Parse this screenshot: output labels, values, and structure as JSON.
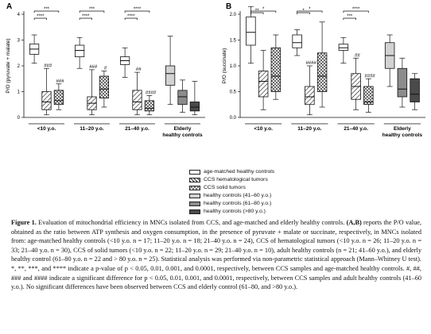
{
  "figure": {
    "panels": [
      "A",
      "B"
    ],
    "group_labels": [
      "<10 y.o.",
      "11–20 y.o.",
      "21–40 y.o.",
      "Elderly\nhealthy controls"
    ],
    "legend": [
      {
        "label": "age-matched healthy controls",
        "pattern": "white"
      },
      {
        "label": "CCS hematological tumors",
        "pattern": "hatch"
      },
      {
        "label": "CCS solid tumors",
        "pattern": "cross"
      },
      {
        "label": "healthy controls (41–60 y.o.)",
        "pattern": "light-gray"
      },
      {
        "label": "healthy controls (61–80 y.o.)",
        "pattern": "mid-gray"
      },
      {
        "label": "healthy controls (>80 y.o.)",
        "pattern": "dark-gray"
      }
    ],
    "colors": {
      "light_gray": "#d2d2d2",
      "mid_gray": "#8c8c8c",
      "dark_gray": "#4a4a4a",
      "white": "#ffffff"
    }
  },
  "chart_data": [
    {
      "panel": "A",
      "type": "box",
      "ylabel": "P/O (pyruvate + malate)",
      "ylim": [
        0,
        4
      ],
      "yticks": [
        0,
        1,
        2,
        3,
        4
      ],
      "boxes": [
        {
          "group": "<10 y.o.",
          "pattern": "white",
          "min": 2.1,
          "q1": 2.45,
          "median": 2.65,
          "q3": 2.85,
          "max": 3.2,
          "note": ""
        },
        {
          "group": "<10 y.o.",
          "pattern": "hatch",
          "min": 0.1,
          "q1": 0.3,
          "median": 0.6,
          "q3": 1.0,
          "max": 1.9,
          "note": "###"
        },
        {
          "group": "<10 y.o.",
          "pattern": "cross",
          "min": 0.3,
          "q1": 0.5,
          "median": 0.65,
          "q3": 1.05,
          "max": 1.3,
          "note": "###"
        },
        {
          "group": "11–20 y.o.",
          "pattern": "white",
          "min": 1.9,
          "q1": 2.35,
          "median": 2.6,
          "q3": 2.8,
          "max": 3.1,
          "note": ""
        },
        {
          "group": "11–20 y.o.",
          "pattern": "hatch",
          "min": 0.1,
          "q1": 0.3,
          "median": 0.55,
          "q3": 0.8,
          "max": 1.85,
          "note": "###"
        },
        {
          "group": "11–20 y.o.",
          "pattern": "cross",
          "min": 0.4,
          "q1": 0.75,
          "median": 1.1,
          "q3": 1.6,
          "max": 1.8,
          "note": "#"
        },
        {
          "group": "21–40 y.o.",
          "pattern": "white",
          "min": 1.55,
          "q1": 2.05,
          "median": 2.2,
          "q3": 2.35,
          "max": 2.7,
          "note": ""
        },
        {
          "group": "21–40 y.o.",
          "pattern": "hatch",
          "min": 0.1,
          "q1": 0.3,
          "median": 0.6,
          "q3": 1.05,
          "max": 1.75,
          "note": "##"
        },
        {
          "group": "21–40 y.o.",
          "pattern": "cross",
          "min": 0.1,
          "q1": 0.25,
          "median": 0.35,
          "q3": 0.65,
          "max": 0.85,
          "note": "####"
        },
        {
          "group": "Elderly\nhealthy controls",
          "pattern": "light-gray",
          "min": 0.5,
          "q1": 1.25,
          "median": 1.7,
          "q3": 2.0,
          "max": 3.15,
          "note": ""
        },
        {
          "group": "Elderly\nhealthy controls",
          "pattern": "mid-gray",
          "min": 0.2,
          "q1": 0.5,
          "median": 0.8,
          "q3": 1.05,
          "max": 1.45,
          "note": ""
        },
        {
          "group": "Elderly\nhealthy controls",
          "pattern": "dark-gray",
          "min": 0.1,
          "q1": 0.25,
          "median": 0.4,
          "q3": 0.6,
          "max": 1.4,
          "note": ""
        }
      ],
      "brackets": [
        {
          "group": "<10 y.o.",
          "from": 0,
          "to": 2,
          "label": "***",
          "level": 2
        },
        {
          "group": "<10 y.o.",
          "from": 0,
          "to": 1,
          "label": "****",
          "level": 1
        },
        {
          "group": "11–20 y.o.",
          "from": 0,
          "to": 2,
          "label": "***",
          "level": 2
        },
        {
          "group": "11–20 y.o.",
          "from": 0,
          "to": 1,
          "label": "****",
          "level": 1
        },
        {
          "group": "21–40 y.o.",
          "from": 0,
          "to": 2,
          "label": "****",
          "level": 2
        },
        {
          "group": "21–40 y.o.",
          "from": 0,
          "to": 1,
          "label": "****",
          "level": 1
        }
      ]
    },
    {
      "panel": "B",
      "type": "box",
      "ylabel": "P/O (succinate)",
      "ylim": [
        0,
        2.0
      ],
      "yticks": [
        0,
        0.5,
        1.0,
        1.5,
        2.0
      ],
      "boxes": [
        {
          "group": "<10 y.o.",
          "pattern": "white",
          "min": 1.05,
          "q1": 1.4,
          "median": 1.65,
          "q3": 1.95,
          "max": 2.15,
          "note": ""
        },
        {
          "group": "<10 y.o.",
          "pattern": "hatch",
          "min": 0.15,
          "q1": 0.4,
          "median": 0.7,
          "q3": 0.9,
          "max": 1.3,
          "note": ""
        },
        {
          "group": "<10 y.o.",
          "pattern": "cross",
          "min": 0.35,
          "q1": 0.5,
          "median": 0.8,
          "q3": 1.35,
          "max": 1.6,
          "note": ""
        },
        {
          "group": "11–20 y.o.",
          "pattern": "white",
          "min": 1.2,
          "q1": 1.35,
          "median": 1.45,
          "q3": 1.6,
          "max": 1.7,
          "note": ""
        },
        {
          "group": "11–20 y.o.",
          "pattern": "hatch",
          "min": 0.05,
          "q1": 0.25,
          "median": 0.4,
          "q3": 0.6,
          "max": 1.0,
          "note": "####"
        },
        {
          "group": "11–20 y.o.",
          "pattern": "cross",
          "min": 0.2,
          "q1": 0.5,
          "median": 0.8,
          "q3": 1.25,
          "max": 1.85,
          "note": ""
        },
        {
          "group": "21–40 y.o.",
          "pattern": "white",
          "min": 1.05,
          "q1": 1.3,
          "median": 1.35,
          "q3": 1.42,
          "max": 1.55,
          "note": ""
        },
        {
          "group": "21–40 y.o.",
          "pattern": "hatch",
          "min": 0.15,
          "q1": 0.35,
          "median": 0.6,
          "q3": 0.85,
          "max": 1.15,
          "note": "##"
        },
        {
          "group": "21–40 y.o.",
          "pattern": "cross",
          "min": 0.1,
          "q1": 0.25,
          "median": 0.3,
          "q3": 0.6,
          "max": 0.75,
          "note": "####"
        },
        {
          "group": "Elderly\nhealthy controls",
          "pattern": "light-gray",
          "min": 0.6,
          "q1": 0.95,
          "median": 1.2,
          "q3": 1.45,
          "max": 1.6,
          "note": ""
        },
        {
          "group": "Elderly\nhealthy controls",
          "pattern": "mid-gray",
          "min": 0.2,
          "q1": 0.4,
          "median": 0.55,
          "q3": 0.95,
          "max": 1.15,
          "note": ""
        },
        {
          "group": "Elderly\nhealthy controls",
          "pattern": "dark-gray",
          "min": 0.15,
          "q1": 0.3,
          "median": 0.45,
          "q3": 0.75,
          "max": 0.85,
          "note": ""
        }
      ],
      "brackets": [
        {
          "group": "<10 y.o.",
          "from": 0,
          "to": 2,
          "label": "*",
          "level": 2
        },
        {
          "group": "<10 y.o.",
          "from": 0,
          "to": 1,
          "label": "**",
          "level": 1
        },
        {
          "group": "11–20 y.o.",
          "from": 0,
          "to": 2,
          "label": "*",
          "level": 2
        },
        {
          "group": "11–20 y.o.",
          "from": 0,
          "to": 1,
          "label": "*",
          "level": 1
        },
        {
          "group": "21–40 y.o.",
          "from": 0,
          "to": 2,
          "label": "****",
          "level": 2
        },
        {
          "group": "21–40 y.o.",
          "from": 0,
          "to": 1,
          "label": "***",
          "level": 1
        }
      ]
    }
  ],
  "caption": {
    "prefix": "Figure 1.",
    "body": " Evaluation of mitochondrial efficiency in MNCs isolated from CCS, and age-matched and elderly healthy controls. ",
    "panels": "(A,B)",
    "rest": " reports the P/O value, obtained as the ratio between ATP synthesis and oxygen consumption, in the presence of pyruvate + malate or succinate, respectively, in MNCs isolated from: age-matched healthy controls (<10 y.o. n = 17; 11–20 y.o. n = 18; 21–40 y.o. n = 24), CCS of hematological tumors (<10 y.o. n = 26; 11–20 y.o. n = 33; 21–40 y.o. n = 30), CCS of solid tumors (<10 y.o. n = 22; 11–20 y.o. n = 29; 21–40 y.o. n = 10), adult healthy controls (n = 21; 41–60 y.o.), and elderly healthy control (61–80 y.o. n = 22 and > 80 y.o. n = 25). Statistical analysis was performed via non-parametric statistical approach (Mann–Whitney U test). *, **, ***, and **** indicate a p-value of p < 0.05, 0.01, 0.001, and 0.0001, respectively, between CCS samples and age-matched healthy controls. #, ##, ### and #### indicate a significant difference for p < 0.05, 0.01, 0.001, and 0.0001, respectively, between CCS samples and adult healthy controls (41–60 y.o.). No significant differences have been observed between CCS and elderly control (61–80, and >80 y.o.)."
  }
}
